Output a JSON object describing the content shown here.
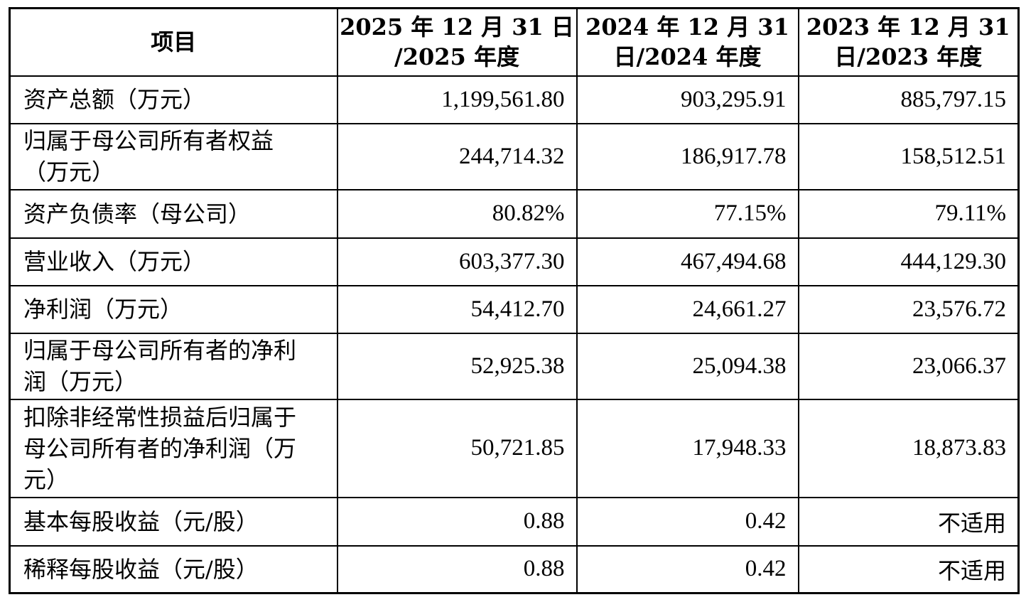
{
  "table": {
    "headers": {
      "item": "项目",
      "col1": [
        "2025 年 12 月 31 日",
        "/2025 年度"
      ],
      "col2": [
        "2024 年 12 月 31",
        "日/2024 年度"
      ],
      "col3": [
        "2023 年 12 月 31",
        "日/2023 年度"
      ]
    },
    "rows": [
      {
        "label": [
          "资产总额（万元）"
        ],
        "values": [
          "1,199,561.80",
          "903,295.91",
          "885,797.15"
        ]
      },
      {
        "label": [
          "归属于母公司所有者权益",
          "（万元）"
        ],
        "values": [
          "244,714.32",
          "186,917.78",
          "158,512.51"
        ]
      },
      {
        "label": [
          "资产负债率（母公司）"
        ],
        "values": [
          "80.82%",
          "77.15%",
          "79.11%"
        ]
      },
      {
        "label": [
          "营业收入（万元）"
        ],
        "values": [
          "603,377.30",
          "467,494.68",
          "444,129.30"
        ]
      },
      {
        "label": [
          "净利润（万元）"
        ],
        "values": [
          "54,412.70",
          "24,661.27",
          "23,576.72"
        ]
      },
      {
        "label": [
          "归属于母公司所有者的净利",
          "润（万元）"
        ],
        "values": [
          "52,925.38",
          "25,094.38",
          "23,066.37"
        ]
      },
      {
        "label": [
          "扣除非经常性损益后归属于",
          "母公司所有者的净利润（万",
          "元）"
        ],
        "values": [
          "50,721.85",
          "17,948.33",
          "18,873.83"
        ]
      },
      {
        "label": [
          "基本每股收益（元/股）"
        ],
        "values": [
          "0.88",
          "0.42",
          "不适用"
        ]
      },
      {
        "label": [
          "稀释每股收益（元/股）"
        ],
        "values": [
          "0.88",
          "0.42",
          "不适用"
        ]
      }
    ]
  }
}
